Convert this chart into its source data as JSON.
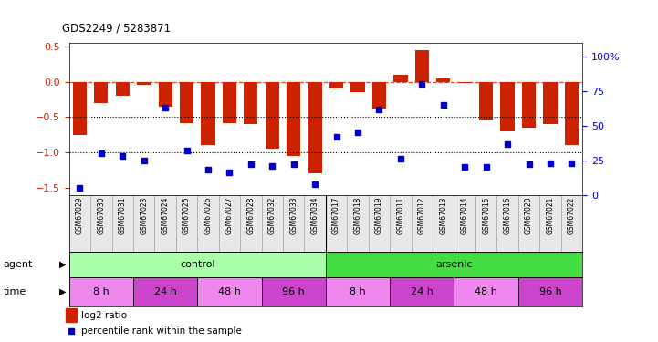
{
  "title": "GDS2249 / 5283871",
  "samples": [
    "GSM67029",
    "GSM67030",
    "GSM67031",
    "GSM67023",
    "GSM67024",
    "GSM67025",
    "GSM67026",
    "GSM67027",
    "GSM67028",
    "GSM67032",
    "GSM67033",
    "GSM67034",
    "GSM67017",
    "GSM67018",
    "GSM67019",
    "GSM67011",
    "GSM67012",
    "GSM67013",
    "GSM67014",
    "GSM67015",
    "GSM67016",
    "GSM67020",
    "GSM67021",
    "GSM67022"
  ],
  "log2_ratio": [
    -0.75,
    -0.3,
    -0.2,
    -0.05,
    -0.35,
    -0.58,
    -0.9,
    -0.58,
    -0.6,
    -0.95,
    -1.05,
    -1.3,
    -0.1,
    -0.15,
    -0.38,
    0.1,
    0.45,
    0.05,
    -0.02,
    -0.55,
    -0.7,
    -0.65,
    -0.6,
    -0.9
  ],
  "percentile": [
    5,
    30,
    28,
    25,
    63,
    32,
    18,
    16,
    22,
    21,
    22,
    8,
    42,
    45,
    62,
    26,
    80,
    65,
    20,
    20,
    37,
    22,
    23,
    23
  ],
  "agent_groups": [
    {
      "label": "control",
      "start": 0,
      "end": 12,
      "color": "#aaffaa"
    },
    {
      "label": "arsenic",
      "start": 12,
      "end": 24,
      "color": "#44dd44"
    }
  ],
  "time_groups": [
    {
      "label": "8 h",
      "start": 0,
      "end": 3,
      "color": "#ee88ee"
    },
    {
      "label": "24 h",
      "start": 3,
      "end": 6,
      "color": "#cc44cc"
    },
    {
      "label": "48 h",
      "start": 6,
      "end": 9,
      "color": "#ee88ee"
    },
    {
      "label": "96 h",
      "start": 9,
      "end": 12,
      "color": "#cc44cc"
    },
    {
      "label": "8 h",
      "start": 12,
      "end": 15,
      "color": "#ee88ee"
    },
    {
      "label": "24 h",
      "start": 15,
      "end": 18,
      "color": "#cc44cc"
    },
    {
      "label": "48 h",
      "start": 18,
      "end": 21,
      "color": "#ee88ee"
    },
    {
      "label": "96 h",
      "start": 21,
      "end": 24,
      "color": "#cc44cc"
    }
  ],
  "bar_color": "#CC2200",
  "dot_color": "#0000CC",
  "ylim_left": [
    -1.6,
    0.55
  ],
  "ylim_right": [
    0,
    110
  ],
  "yticks_left": [
    -1.5,
    -1.0,
    -0.5,
    0.0,
    0.5
  ],
  "yticks_right": [
    0,
    25,
    50,
    75,
    100
  ],
  "hline_dashed": 0.0,
  "hlines_dotted": [
    -0.5,
    -1.0
  ]
}
